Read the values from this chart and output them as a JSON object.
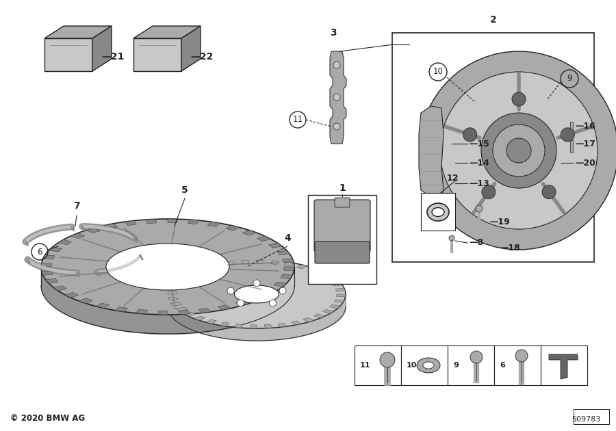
{
  "bg_color": "#ffffff",
  "line_color": "#222222",
  "gray_light": "#c8c8c8",
  "gray_mid": "#aaaaaa",
  "gray_dark": "#888888",
  "gray_darker": "#666666",
  "copyright": "© 2020 BMW AG",
  "part_number": "509783",
  "fig_width": 9.0,
  "fig_height": 6.3,
  "dpi": 100
}
